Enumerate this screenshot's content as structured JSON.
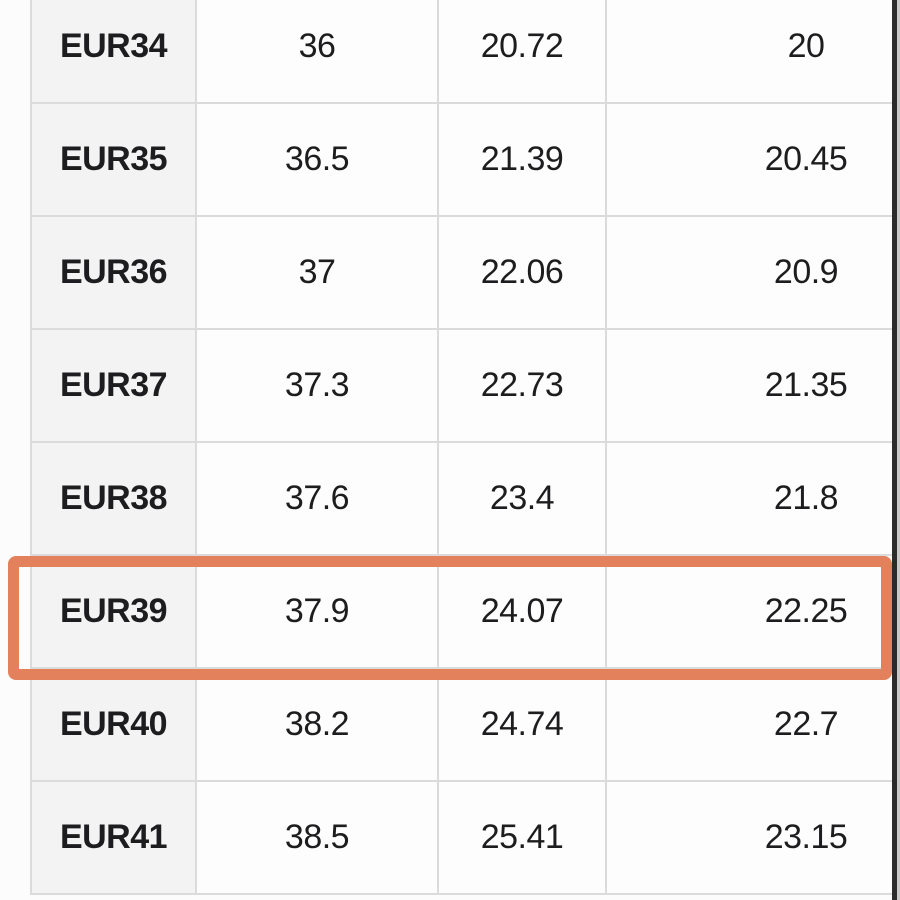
{
  "size_chart": {
    "rows": [
      {
        "size": "EUR34",
        "values": [
          "36",
          "20.72",
          "20"
        ]
      },
      {
        "size": "EUR35",
        "values": [
          "36.5",
          "21.39",
          "20.45"
        ]
      },
      {
        "size": "EUR36",
        "values": [
          "37",
          "22.06",
          "20.9"
        ]
      },
      {
        "size": "EUR37",
        "values": [
          "37.3",
          "22.73",
          "21.35"
        ]
      },
      {
        "size": "EUR38",
        "values": [
          "37.6",
          "23.4",
          "21.8"
        ]
      },
      {
        "size": "EUR39",
        "values": [
          "37.9",
          "24.07",
          "22.25"
        ]
      },
      {
        "size": "EUR40",
        "values": [
          "38.2",
          "24.74",
          "22.7"
        ]
      },
      {
        "size": "EUR41",
        "values": [
          "38.5",
          "25.41",
          "23.15"
        ]
      }
    ],
    "highlighted_row": "EUR39"
  },
  "colors": {
    "accent": "#E2815B",
    "col1_bg": "#f3f3f3",
    "cell_bg": "#fdfdfd",
    "grid": "#dbdbdb",
    "text": "#1d1d1f",
    "edge": "#2b2b2b"
  }
}
